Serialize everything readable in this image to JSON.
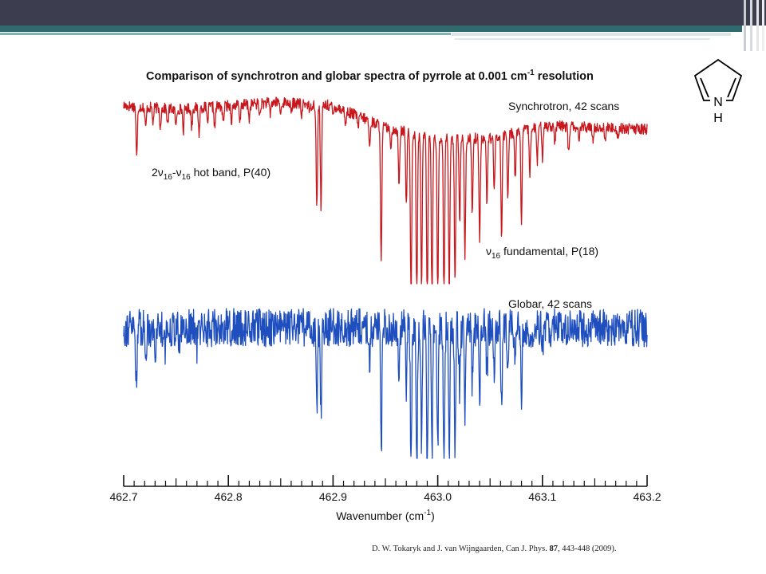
{
  "citation": {
    "authors": "D. W. Tokaryk and J. van Wijngaarden,",
    "journal": "Can J. Phys.",
    "volume": "87",
    "pages_year": ", 443-448 (2009)."
  },
  "molecule": {
    "atom_label": "N",
    "h_label": "H"
  },
  "chart_data": {
    "type": "line",
    "title_main": "Comparison of synchrotron and globar spectra of pyrrole at 0.001 cm",
    "title_sup": "-1",
    "title_end": " resolution",
    "xlabel_main": "Wavenumber (cm",
    "xlabel_sup": "-1",
    "xlabel_end": ")",
    "xlim": [
      462.7,
      463.2
    ],
    "major_ticks": [
      "462.7",
      "462.8",
      "462.9",
      "463.0",
      "463.1",
      "463.2"
    ],
    "minor_tick_step": 0.01,
    "colors": {
      "synchrotron": "#c8181e",
      "globar": "#1f4fbf"
    },
    "annotations": {
      "synchrotron_label": "Synchrotron, 42 scans",
      "globar_label": "Globar, 42 scans",
      "hot_band": {
        "a": "2",
        "nu1": "ν",
        "sub1": "16",
        "dash": "-",
        "nu2": "ν",
        "sub2": "16",
        "rest": " hot band, P(40)"
      },
      "fundamental": {
        "nu": "ν",
        "sub": "16",
        "rest": " fundamental, P(18)"
      }
    },
    "series": [
      {
        "name": "Synchrotron, 42 scans",
        "baseline": [
          [
            462.7,
            0.98
          ],
          [
            462.75,
            0.96
          ],
          [
            462.8,
            0.98
          ],
          [
            462.85,
            1.0
          ],
          [
            462.9,
            0.98
          ],
          [
            462.95,
            0.86
          ],
          [
            463.0,
            0.8
          ],
          [
            463.05,
            0.8
          ],
          [
            463.1,
            0.87
          ],
          [
            463.15,
            0.86
          ],
          [
            463.2,
            0.85
          ]
        ],
        "noise": 0.03,
        "lines": [
          [
            462.7125,
            0.28
          ],
          [
            462.721,
            0.12
          ],
          [
            462.728,
            0.08
          ],
          [
            462.735,
            0.1
          ],
          [
            462.742,
            0.09
          ],
          [
            462.75,
            0.1
          ],
          [
            462.757,
            0.12
          ],
          [
            462.765,
            0.1
          ],
          [
            462.772,
            0.14
          ],
          [
            462.78,
            0.09
          ],
          [
            462.787,
            0.12
          ],
          [
            462.795,
            0.1
          ],
          [
            462.803,
            0.08
          ],
          [
            462.811,
            0.1
          ],
          [
            462.82,
            0.08
          ],
          [
            462.83,
            0.07
          ],
          [
            462.84,
            0.06
          ],
          [
            462.85,
            0.07
          ],
          [
            462.86,
            0.06
          ],
          [
            462.87,
            0.07
          ],
          [
            462.878,
            0.05
          ],
          [
            462.8845,
            0.58
          ],
          [
            462.8885,
            0.58
          ],
          [
            462.9,
            0.06
          ],
          [
            462.912,
            0.08
          ],
          [
            462.924,
            0.06
          ],
          [
            462.935,
            0.15
          ],
          [
            462.946,
            0.75
          ],
          [
            462.955,
            0.12
          ],
          [
            462.963,
            0.3
          ],
          [
            462.97,
            0.4
          ],
          [
            462.9745,
            0.95
          ],
          [
            462.98,
            0.95
          ],
          [
            462.9845,
            0.85
          ],
          [
            462.99,
            0.95
          ],
          [
            462.9945,
            0.95
          ],
          [
            463.0,
            0.9
          ],
          [
            463.006,
            0.9
          ],
          [
            463.011,
            0.85
          ],
          [
            463.0165,
            0.8
          ],
          [
            463.021,
            0.45
          ],
          [
            463.026,
            0.65
          ],
          [
            463.033,
            0.4
          ],
          [
            463.04,
            0.55
          ],
          [
            463.047,
            0.35
          ],
          [
            463.054,
            0.3
          ],
          [
            463.061,
            0.55
          ],
          [
            463.067,
            0.35
          ],
          [
            463.074,
            0.25
          ],
          [
            463.08,
            0.5
          ],
          [
            463.088,
            0.25
          ],
          [
            463.095,
            0.2
          ],
          [
            463.1,
            0.18
          ],
          [
            463.112,
            0.1
          ],
          [
            463.125,
            0.15
          ],
          [
            463.135,
            0.1
          ],
          [
            463.148,
            0.08
          ],
          [
            463.16,
            0.06
          ],
          [
            463.172,
            0.05
          ]
        ]
      },
      {
        "name": "Globar, 42 scans",
        "baseline": [
          [
            462.7,
            0.82
          ],
          [
            463.2,
            0.82
          ]
        ],
        "noise": 0.12,
        "lines": [
          [
            462.712,
            0.35
          ],
          [
            462.721,
            0.2
          ],
          [
            462.73,
            0.2
          ],
          [
            462.74,
            0.15
          ],
          [
            462.753,
            0.15
          ],
          [
            462.77,
            0.12
          ],
          [
            462.8845,
            0.55
          ],
          [
            462.8885,
            0.55
          ],
          [
            462.935,
            0.2
          ],
          [
            462.946,
            0.85
          ],
          [
            462.963,
            0.3
          ],
          [
            462.97,
            0.4
          ],
          [
            462.9745,
            0.9
          ],
          [
            462.98,
            0.9
          ],
          [
            462.9845,
            0.75
          ],
          [
            462.99,
            0.9
          ],
          [
            462.9945,
            0.85
          ],
          [
            463.0,
            0.8
          ],
          [
            463.006,
            0.85
          ],
          [
            463.011,
            0.75
          ],
          [
            463.0165,
            0.75
          ],
          [
            463.021,
            0.4
          ],
          [
            463.026,
            0.6
          ],
          [
            463.033,
            0.35
          ],
          [
            463.04,
            0.5
          ],
          [
            463.047,
            0.3
          ],
          [
            463.054,
            0.25
          ],
          [
            463.061,
            0.5
          ],
          [
            463.067,
            0.3
          ],
          [
            463.074,
            0.2
          ],
          [
            463.08,
            0.45
          ],
          [
            463.088,
            0.2
          ],
          [
            463.1,
            0.15
          ]
        ]
      }
    ]
  }
}
